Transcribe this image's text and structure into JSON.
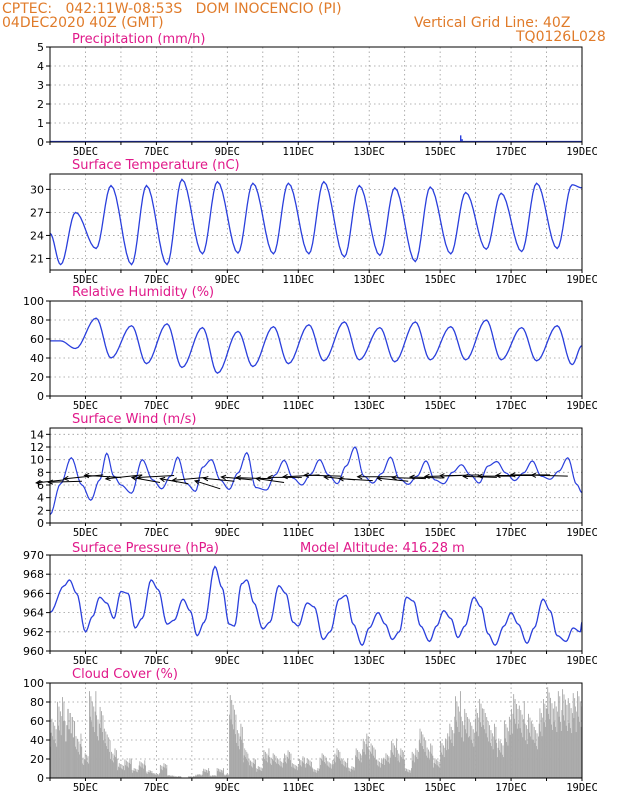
{
  "header": {
    "station_line": "CPTEC:   042:11W-08:53S   DOM INOCENCIO (PI)",
    "date_line": "04DEC2020 40Z (GMT)",
    "grid_line": "Vertical Grid Line: 40Z",
    "code": "TQ0126L028"
  },
  "colors": {
    "header": "#e07b2a",
    "title": "#e0198a",
    "line": "#2a3fdc",
    "cloud": "#a9a9a9",
    "grid": "#9a9a9a"
  },
  "x_axis": {
    "start_day": 4.0,
    "end_day": 19.0,
    "tick_days": [
      5,
      7,
      9,
      11,
      13,
      15,
      17,
      19
    ],
    "tick_labels": [
      "5DEC",
      "7DEC",
      "9DEC",
      "11DEC",
      "13DEC",
      "15DEC",
      "17DEC",
      "19DEC"
    ]
  },
  "chart_data": [
    {
      "type": "bar",
      "title": "Precipitation (mm/h)",
      "ylim": [
        0,
        5
      ],
      "yticks": [
        0,
        1,
        2,
        3,
        4,
        5
      ],
      "events": [
        {
          "day": 15.58,
          "value": 0.35
        },
        {
          "day": 15.62,
          "value": 0.15
        }
      ],
      "baseline": 0
    },
    {
      "type": "line",
      "title": "Surface Temperature (nC)",
      "ylim": [
        19.5,
        32
      ],
      "yticks": [
        21,
        24,
        27,
        30
      ],
      "daily_max": [
        27,
        30.5,
        30.5,
        31.3,
        31.0,
        30.8,
        30.8,
        31.0,
        30.5,
        30.2,
        30.3,
        29.6,
        29.5,
        30.8,
        30.6,
        29.8
      ],
      "daily_min": [
        20.2,
        22.3,
        20.2,
        20.2,
        21.6,
        21.7,
        21.6,
        21.6,
        21.2,
        21.4,
        20.6,
        21.6,
        22.2,
        21.9,
        22.3,
        22.5
      ]
    },
    {
      "type": "line",
      "title": "Relative Humidity (%)",
      "ylim": [
        0,
        100
      ],
      "yticks": [
        0,
        20,
        40,
        60,
        80,
        100
      ],
      "daily_max": [
        58,
        82,
        74,
        76,
        72,
        68,
        73,
        75,
        78,
        72,
        78,
        73,
        80,
        72,
        74,
        73
      ],
      "daily_min": [
        50,
        40,
        34,
        30,
        24,
        31,
        34,
        37,
        38,
        36,
        38,
        38,
        38,
        37,
        33,
        31
      ]
    },
    {
      "type": "line",
      "title": "Surface Wind (m/s)",
      "ylim": [
        0,
        15
      ],
      "yticks": [
        0,
        2,
        4,
        6,
        8,
        10,
        12,
        14
      ],
      "hourly_pattern": [
        [
          4.0,
          1.3
        ],
        [
          4.3,
          6.2
        ],
        [
          4.6,
          10.3
        ],
        [
          4.9,
          6.0
        ],
        [
          5.15,
          3.6
        ],
        [
          5.4,
          6.8
        ],
        [
          5.6,
          11.0
        ],
        [
          5.8,
          7.4
        ],
        [
          6.0,
          6.0
        ],
        [
          6.3,
          4.7
        ],
        [
          6.6,
          10.0
        ],
        [
          6.9,
          6.8
        ],
        [
          7.15,
          5.4
        ],
        [
          7.4,
          7.4
        ],
        [
          7.6,
          10.4
        ],
        [
          7.85,
          6.2
        ],
        [
          8.1,
          5.0
        ],
        [
          8.3,
          8.8
        ],
        [
          8.55,
          10.0
        ],
        [
          8.8,
          6.8
        ],
        [
          9.05,
          5.3
        ],
        [
          9.3,
          7.9
        ],
        [
          9.55,
          11.1
        ],
        [
          9.8,
          5.6
        ],
        [
          10.1,
          5.2
        ],
        [
          10.35,
          7.6
        ],
        [
          10.6,
          9.9
        ],
        [
          10.85,
          7.1
        ],
        [
          11.1,
          6.0
        ],
        [
          11.35,
          7.7
        ],
        [
          11.6,
          10.0
        ],
        [
          11.85,
          7.6
        ],
        [
          12.1,
          6.2
        ],
        [
          12.35,
          9.0
        ],
        [
          12.6,
          12.0
        ],
        [
          12.85,
          7.4
        ],
        [
          13.1,
          6.3
        ],
        [
          13.35,
          7.8
        ],
        [
          13.6,
          10.4
        ],
        [
          13.85,
          7.0
        ],
        [
          14.1,
          6.1
        ],
        [
          14.35,
          7.4
        ],
        [
          14.6,
          9.8
        ],
        [
          14.85,
          6.8
        ],
        [
          15.1,
          6.2
        ],
        [
          15.35,
          8.0
        ],
        [
          15.6,
          9.2
        ],
        [
          15.85,
          7.6
        ],
        [
          16.1,
          6.3
        ],
        [
          16.35,
          9.0
        ],
        [
          16.6,
          9.7
        ],
        [
          16.85,
          7.9
        ],
        [
          17.1,
          6.7
        ],
        [
          17.35,
          7.9
        ],
        [
          17.6,
          9.8
        ],
        [
          17.85,
          7.4
        ],
        [
          18.1,
          6.9
        ],
        [
          18.35,
          8.2
        ],
        [
          18.6,
          10.3
        ],
        [
          18.85,
          6.1
        ],
        [
          19.0,
          4.8
        ]
      ],
      "vectors": [
        {
          "day": 4.4,
          "y": 6.8,
          "dx": -1.0,
          "dy": -0.3
        },
        {
          "day": 4.9,
          "y": 6.6,
          "dx": -1.2,
          "dy": -0.1
        },
        {
          "day": 5.5,
          "y": 7.6,
          "dx": -1.4,
          "dy": -0.4
        },
        {
          "day": 6.0,
          "y": 7.2,
          "dx": -1.3,
          "dy": 0.2
        },
        {
          "day": 6.6,
          "y": 7.6,
          "dx": -1.3,
          "dy": -0.4
        },
        {
          "day": 7.1,
          "y": 6.4,
          "dx": -1.0,
          "dy": 0.5
        },
        {
          "day": 7.5,
          "y": 7.5,
          "dx": -1.3,
          "dy": -0.2
        },
        {
          "day": 7.9,
          "y": 6.2,
          "dx": -1.0,
          "dy": 0.5
        },
        {
          "day": 8.4,
          "y": 7.2,
          "dx": -1.2,
          "dy": -0.3
        },
        {
          "day": 8.8,
          "y": 5.4,
          "dx": -0.9,
          "dy": 0.8
        },
        {
          "day": 9.2,
          "y": 6.6,
          "dx": -1.1,
          "dy": 0.3
        },
        {
          "day": 9.7,
          "y": 6.8,
          "dx": -1.1,
          "dy": 0.3
        },
        {
          "day": 10.2,
          "y": 7.0,
          "dx": -1.2,
          "dy": 0.1
        },
        {
          "day": 10.6,
          "y": 6.4,
          "dx": -1.0,
          "dy": 0.4
        },
        {
          "day": 11.1,
          "y": 7.2,
          "dx": -1.2,
          "dy": 0.0
        },
        {
          "day": 11.6,
          "y": 7.6,
          "dx": -1.3,
          "dy": -0.2
        },
        {
          "day": 12.2,
          "y": 7.4,
          "dx": -1.3,
          "dy": 0.1
        },
        {
          "day": 12.6,
          "y": 6.8,
          "dx": -1.1,
          "dy": 0.3
        },
        {
          "day": 13.1,
          "y": 6.7,
          "dx": -1.2,
          "dy": 0.2
        },
        {
          "day": 13.7,
          "y": 7.3,
          "dx": -1.3,
          "dy": 0.0
        },
        {
          "day": 14.1,
          "y": 6.6,
          "dx": -1.1,
          "dy": 0.3
        },
        {
          "day": 14.6,
          "y": 7.0,
          "dx": -1.2,
          "dy": 0.1
        },
        {
          "day": 15.1,
          "y": 7.1,
          "dx": -1.2,
          "dy": 0.1
        },
        {
          "day": 15.6,
          "y": 7.5,
          "dx": -1.3,
          "dy": -0.1
        },
        {
          "day": 16.1,
          "y": 7.6,
          "dx": -1.4,
          "dy": -0.1
        },
        {
          "day": 16.6,
          "y": 7.2,
          "dx": -1.2,
          "dy": 0.1
        },
        {
          "day": 17.1,
          "y": 7.4,
          "dx": -1.3,
          "dy": 0.0
        },
        {
          "day": 17.6,
          "y": 7.5,
          "dx": -1.3,
          "dy": 0.0
        },
        {
          "day": 18.1,
          "y": 7.6,
          "dx": -1.4,
          "dy": 0.0
        },
        {
          "day": 18.6,
          "y": 7.4,
          "dx": -1.3,
          "dy": 0.1
        }
      ]
    },
    {
      "type": "line",
      "title": "Surface Pressure (hPa)",
      "annotation": "Model Altitude: 416.28 m",
      "ylim": [
        960,
        970
      ],
      "yticks": [
        960,
        962,
        964,
        966,
        968,
        970
      ],
      "points": [
        [
          4.0,
          964.0
        ],
        [
          4.4,
          966.8
        ],
        [
          4.55,
          967.4
        ],
        [
          4.75,
          966.0
        ],
        [
          5.0,
          962.0
        ],
        [
          5.2,
          963.6
        ],
        [
          5.4,
          965.6
        ],
        [
          5.6,
          965.0
        ],
        [
          5.8,
          963.4
        ],
        [
          6.0,
          966.2
        ],
        [
          6.2,
          966.0
        ],
        [
          6.4,
          962.4
        ],
        [
          6.6,
          963.4
        ],
        [
          6.85,
          967.4
        ],
        [
          7.05,
          966.4
        ],
        [
          7.3,
          962.8
        ],
        [
          7.5,
          963.2
        ],
        [
          7.75,
          965.4
        ],
        [
          7.95,
          964.2
        ],
        [
          8.15,
          961.6
        ],
        [
          8.35,
          963.0
        ],
        [
          8.65,
          968.8
        ],
        [
          8.85,
          966.6
        ],
        [
          9.05,
          962.8
        ],
        [
          9.2,
          962.6
        ],
        [
          9.4,
          967.0
        ],
        [
          9.55,
          967.4
        ],
        [
          9.75,
          965.0
        ],
        [
          10.0,
          962.3
        ],
        [
          10.2,
          963.0
        ],
        [
          10.45,
          966.8
        ],
        [
          10.65,
          966.0
        ],
        [
          10.85,
          963.0
        ],
        [
          11.0,
          962.6
        ],
        [
          11.25,
          965.0
        ],
        [
          11.45,
          964.6
        ],
        [
          11.7,
          961.2
        ],
        [
          11.9,
          962.0
        ],
        [
          12.15,
          965.4
        ],
        [
          12.35,
          965.8
        ],
        [
          12.55,
          962.8
        ],
        [
          12.8,
          960.6
        ],
        [
          13.0,
          962.4
        ],
        [
          13.25,
          964.0
        ],
        [
          13.45,
          962.8
        ],
        [
          13.65,
          961.2
        ],
        [
          13.85,
          962.0
        ],
        [
          14.05,
          965.6
        ],
        [
          14.25,
          965.2
        ],
        [
          14.45,
          962.6
        ],
        [
          14.7,
          961.0
        ],
        [
          14.9,
          962.6
        ],
        [
          15.1,
          964.2
        ],
        [
          15.3,
          963.4
        ],
        [
          15.5,
          961.4
        ],
        [
          15.7,
          962.6
        ],
        [
          15.95,
          965.6
        ],
        [
          16.15,
          964.6
        ],
        [
          16.35,
          961.8
        ],
        [
          16.55,
          960.6
        ],
        [
          16.8,
          962.6
        ],
        [
          17.0,
          964.0
        ],
        [
          17.2,
          962.8
        ],
        [
          17.45,
          960.8
        ],
        [
          17.65,
          962.4
        ],
        [
          17.9,
          965.4
        ],
        [
          18.1,
          964.2
        ],
        [
          18.3,
          961.6
        ],
        [
          18.55,
          961.0
        ],
        [
          18.75,
          962.4
        ],
        [
          18.95,
          962.0
        ],
        [
          19.0,
          963.0
        ]
      ]
    },
    {
      "type": "bar",
      "title": "Cloud Cover (%)",
      "ylim": [
        0,
        100
      ],
      "yticks": [
        0,
        20,
        40,
        60,
        80,
        100
      ],
      "segments": [
        [
          4.0,
          4.2,
          60
        ],
        [
          4.2,
          4.4,
          82
        ],
        [
          4.4,
          4.7,
          70
        ],
        [
          4.7,
          4.9,
          45
        ],
        [
          4.9,
          5.1,
          25
        ],
        [
          5.1,
          5.3,
          88
        ],
        [
          5.3,
          5.5,
          72
        ],
        [
          5.5,
          5.7,
          50
        ],
        [
          5.7,
          5.9,
          30
        ],
        [
          5.9,
          6.1,
          15
        ],
        [
          6.1,
          6.3,
          20
        ],
        [
          6.3,
          6.5,
          10
        ],
        [
          6.5,
          6.7,
          18
        ],
        [
          6.7,
          6.9,
          8
        ],
        [
          6.9,
          7.1,
          5
        ],
        [
          7.1,
          7.3,
          15
        ],
        [
          7.3,
          7.5,
          3
        ],
        [
          7.5,
          7.7,
          2
        ],
        [
          7.7,
          7.9,
          0
        ],
        [
          7.9,
          8.1,
          2
        ],
        [
          8.1,
          8.3,
          4
        ],
        [
          8.3,
          8.5,
          10
        ],
        [
          8.5,
          8.7,
          3
        ],
        [
          8.7,
          8.9,
          10
        ],
        [
          8.9,
          9.05,
          4
        ],
        [
          9.05,
          9.25,
          84
        ],
        [
          9.25,
          9.45,
          55
        ],
        [
          9.45,
          9.6,
          30
        ],
        [
          9.6,
          9.8,
          20
        ],
        [
          9.8,
          10.0,
          12
        ],
        [
          10.0,
          10.2,
          30
        ],
        [
          10.2,
          10.4,
          25
        ],
        [
          10.4,
          10.6,
          20
        ],
        [
          10.6,
          10.8,
          28
        ],
        [
          10.8,
          11.0,
          15
        ],
        [
          11.0,
          11.2,
          22
        ],
        [
          11.2,
          11.4,
          20
        ],
        [
          11.4,
          11.6,
          10
        ],
        [
          11.6,
          11.8,
          25
        ],
        [
          11.8,
          12.0,
          18
        ],
        [
          12.0,
          12.2,
          30
        ],
        [
          12.2,
          12.4,
          20
        ],
        [
          12.4,
          12.6,
          12
        ],
        [
          12.6,
          12.8,
          30
        ],
        [
          12.8,
          13.0,
          45
        ],
        [
          13.0,
          13.2,
          35
        ],
        [
          13.2,
          13.4,
          20
        ],
        [
          13.4,
          13.6,
          25
        ],
        [
          13.6,
          13.8,
          40
        ],
        [
          13.8,
          14.0,
          30
        ],
        [
          14.0,
          14.2,
          10
        ],
        [
          14.2,
          14.4,
          30
        ],
        [
          14.4,
          14.6,
          50
        ],
        [
          14.6,
          14.8,
          35
        ],
        [
          14.8,
          15.0,
          20
        ],
        [
          15.0,
          15.2,
          40
        ],
        [
          15.2,
          15.4,
          55
        ],
        [
          15.4,
          15.6,
          88
        ],
        [
          15.6,
          15.8,
          70
        ],
        [
          15.8,
          16.0,
          60
        ],
        [
          16.0,
          16.2,
          80
        ],
        [
          16.2,
          16.4,
          70
        ],
        [
          16.4,
          16.6,
          55
        ],
        [
          16.6,
          16.8,
          40
        ],
        [
          16.8,
          17.0,
          62
        ],
        [
          17.0,
          17.2,
          85
        ],
        [
          17.2,
          17.4,
          78
        ],
        [
          17.4,
          17.6,
          65
        ],
        [
          17.6,
          17.8,
          55
        ],
        [
          17.8,
          18.0,
          80
        ],
        [
          18.0,
          18.2,
          92
        ],
        [
          18.2,
          18.4,
          88
        ],
        [
          18.4,
          18.6,
          90
        ],
        [
          18.6,
          18.8,
          86
        ],
        [
          18.8,
          19.0,
          88
        ]
      ]
    }
  ]
}
